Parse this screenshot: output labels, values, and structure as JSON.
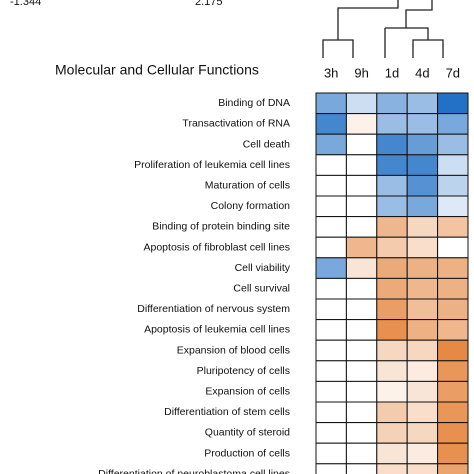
{
  "chart_data": {
    "type": "heatmap",
    "title": "Molecular and Cellular Functions",
    "zlim": [
      -1.344,
      2.175
    ],
    "colors": {
      "low": "#1c6cc4",
      "mid": "#ffffff",
      "high": "#e0711e"
    },
    "columns": [
      "3h",
      "9h",
      "1d",
      "4d",
      "7d"
    ],
    "rows": [
      "Binding of DNA",
      "Transactivation of RNA",
      "Cell death",
      "Proliferation of leukemia cell lines",
      "Maturation of cells",
      "Colony formation",
      "Binding of protein binding site",
      "Apoptosis of fibroblast cell lines",
      "Cell viability",
      "Cell survival",
      "Differentiation of nervous system",
      "Apoptosis of leukemia cell lines",
      "Expansion of blood cells",
      "Pluripotency of cells",
      "Expansion of cells",
      "Differentiation of stem cells",
      "Quantity of steroid",
      "Production of cells",
      "Differentiation of neuroblastoma cell lines"
    ],
    "values": [
      [
        -0.8,
        -0.3,
        -0.7,
        -0.6,
        -1.3
      ],
      [
        -1.1,
        0.2,
        -0.6,
        -0.6,
        -0.8
      ],
      [
        -0.8,
        0,
        -1.1,
        -0.9,
        -0.6
      ],
      [
        0,
        0,
        -1.1,
        -1.1,
        -0.3
      ],
      [
        0,
        0,
        -0.6,
        -1.0,
        -0.4
      ],
      [
        0,
        0,
        -0.6,
        -0.8,
        -0.2
      ],
      [
        0,
        0,
        1.1,
        0.6,
        0.9
      ],
      [
        0,
        1.1,
        0.8,
        0.5,
        0
      ],
      [
        -0.8,
        0.4,
        1.3,
        1.2,
        1.2
      ],
      [
        0,
        0,
        1.3,
        1.1,
        1.2
      ],
      [
        0,
        0,
        1.5,
        1.0,
        1.2
      ],
      [
        0,
        0,
        1.7,
        1.2,
        1.1
      ],
      [
        0,
        0,
        0.6,
        0.6,
        1.8
      ],
      [
        0,
        0,
        0.4,
        0.3,
        1.6
      ],
      [
        0,
        0,
        0.2,
        0.4,
        1.5
      ],
      [
        0,
        0,
        0.8,
        0.5,
        1.6
      ],
      [
        0,
        0,
        0.7,
        0.6,
        1.7
      ],
      [
        0,
        0,
        0.4,
        0.3,
        1.7
      ],
      [
        0,
        0,
        0.5,
        0.5,
        1.4
      ]
    ]
  }
}
